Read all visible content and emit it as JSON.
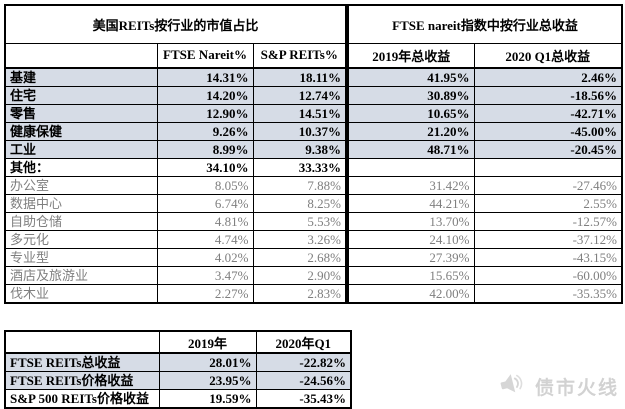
{
  "colors": {
    "row_shade": "#d6dce6",
    "sub_text": "#7f7f7f",
    "border": "#000000",
    "watermark": "#d2d2d2"
  },
  "market_cap_table": {
    "title": "美国REITs按行业的市值占比",
    "columns": [
      "FTSE Nareit%",
      "S&P REITs%"
    ]
  },
  "returns_table": {
    "title": "FTSE nareit指数中按行业总收益",
    "columns": [
      "2019年总收益",
      "2020 Q1总收益"
    ]
  },
  "rows": [
    {
      "label": "基建",
      "ftse_nareit": "14.31%",
      "sp_reits": "18.11%",
      "ret_2019": "41.95%",
      "ret_2020q1": "2.46%",
      "type": "main"
    },
    {
      "label": "住宅",
      "ftse_nareit": "14.20%",
      "sp_reits": "12.74%",
      "ret_2019": "30.89%",
      "ret_2020q1": "-18.56%",
      "type": "main"
    },
    {
      "label": "零售",
      "ftse_nareit": "12.90%",
      "sp_reits": "14.51%",
      "ret_2019": "10.65%",
      "ret_2020q1": "-42.71%",
      "type": "main"
    },
    {
      "label": "健康保健",
      "ftse_nareit": "9.26%",
      "sp_reits": "10.37%",
      "ret_2019": "21.20%",
      "ret_2020q1": "-45.00%",
      "type": "main"
    },
    {
      "label": "工业",
      "ftse_nareit": "8.99%",
      "sp_reits": "9.38%",
      "ret_2019": "48.71%",
      "ret_2020q1": "-20.45%",
      "type": "main"
    },
    {
      "label": "其他：",
      "ftse_nareit": "34.10%",
      "sp_reits": "33.33%",
      "ret_2019": "",
      "ret_2020q1": "",
      "type": "group"
    },
    {
      "label": "办公室",
      "ftse_nareit": "8.05%",
      "sp_reits": "7.88%",
      "ret_2019": "31.42%",
      "ret_2020q1": "-27.46%",
      "type": "sub"
    },
    {
      "label": "数据中心",
      "ftse_nareit": "6.74%",
      "sp_reits": "8.25%",
      "ret_2019": "44.21%",
      "ret_2020q1": "2.55%",
      "type": "sub"
    },
    {
      "label": "自助仓储",
      "ftse_nareit": "4.81%",
      "sp_reits": "5.53%",
      "ret_2019": "13.70%",
      "ret_2020q1": "-12.57%",
      "type": "sub"
    },
    {
      "label": "多元化",
      "ftse_nareit": "4.74%",
      "sp_reits": "3.26%",
      "ret_2019": "24.10%",
      "ret_2020q1": "-37.12%",
      "type": "sub"
    },
    {
      "label": "专业型",
      "ftse_nareit": "4.02%",
      "sp_reits": "2.68%",
      "ret_2019": "27.39%",
      "ret_2020q1": "-43.15%",
      "type": "sub"
    },
    {
      "label": "酒店及旅游业",
      "ftse_nareit": "3.47%",
      "sp_reits": "2.90%",
      "ret_2019": "15.65%",
      "ret_2020q1": "-60.00%",
      "type": "sub"
    },
    {
      "label": "伐木业",
      "ftse_nareit": "2.27%",
      "sp_reits": "2.83%",
      "ret_2019": "42.00%",
      "ret_2020q1": "-35.35%",
      "type": "sub"
    }
  ],
  "summary_table": {
    "columns": [
      "2019年",
      "2020年Q1"
    ],
    "rows": [
      {
        "label": "FTSE REITs总收益",
        "y2019": "28.01%",
        "q1_2020": "-22.82%",
        "shaded": true
      },
      {
        "label": "FTSE REITs价格收益",
        "y2019": "23.95%",
        "q1_2020": "-24.56%",
        "shaded": true
      },
      {
        "label": "S&P 500 REITs价格收益",
        "y2019": "19.59%",
        "q1_2020": "-35.43%",
        "shaded": false
      }
    ]
  },
  "watermark": {
    "text": "债市火线",
    "icon": "megaphone-icon"
  }
}
